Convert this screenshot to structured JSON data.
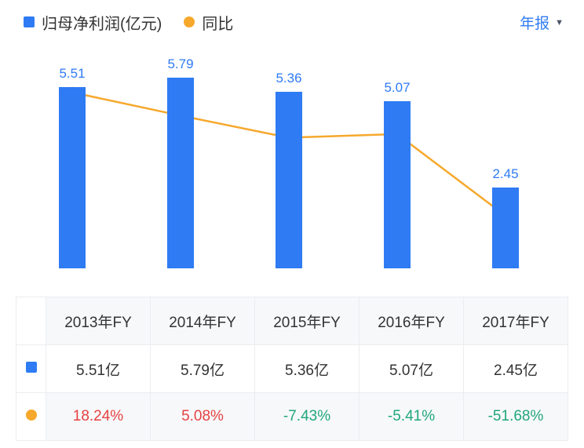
{
  "legend": {
    "bar_label": "归母净利润(亿元)",
    "line_label": "同比",
    "period_selector": "年报",
    "caret_icon": "▼"
  },
  "palette": {
    "bar": "#2e7bf3",
    "line": "#f6a82c",
    "value_label": "#2e7bf3",
    "red": "#e64242",
    "green": "#21a67a",
    "dark": "#333333"
  },
  "chart_data": {
    "type": "bar",
    "categories": [
      "2013年FY",
      "2014年FY",
      "2015年FY",
      "2016年FY",
      "2017年FY"
    ],
    "series": [
      {
        "name": "归母净利润(亿元)",
        "type": "bar",
        "unit": "亿",
        "values": [
          5.51,
          5.79,
          5.36,
          5.07,
          2.45
        ]
      },
      {
        "name": "同比",
        "type": "line",
        "unit": "%",
        "values": [
          18.24,
          5.08,
          -7.43,
          -5.41,
          -51.68
        ]
      }
    ],
    "bar_labels": [
      "5.51",
      "5.79",
      "5.36",
      "5.07",
      "2.45"
    ],
    "bar_ylim": [
      0,
      6.2
    ],
    "line_ylim": [
      -65,
      35
    ],
    "legend_position": "top",
    "grid": false
  },
  "table": {
    "header": [
      "",
      "2013年FY",
      "2014年FY",
      "2015年FY",
      "2016年FY",
      "2017年FY"
    ],
    "rows": [
      {
        "icon": "bar-series-swatch",
        "cells": [
          "5.51亿",
          "5.79亿",
          "5.36亿",
          "5.07亿",
          "2.45亿"
        ],
        "colors": [
          "dark",
          "dark",
          "dark",
          "dark",
          "dark"
        ]
      },
      {
        "icon": "line-series-swatch",
        "cells": [
          "18.24%",
          "5.08%",
          "-7.43%",
          "-5.41%",
          "-51.68%"
        ],
        "colors": [
          "red",
          "red",
          "green",
          "green",
          "green"
        ]
      }
    ]
  }
}
